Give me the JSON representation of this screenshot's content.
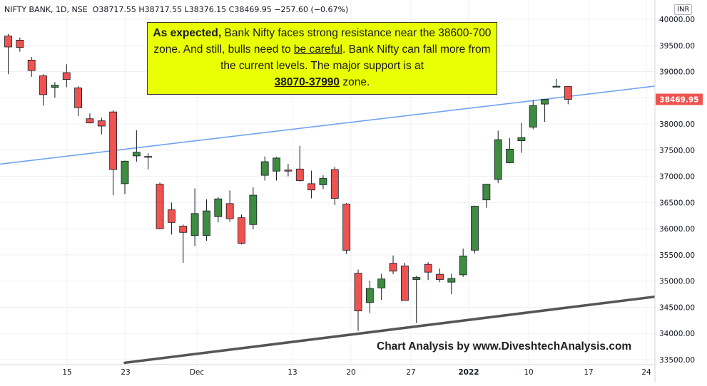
{
  "header": {
    "symbol": "NIFTY BANK, 1D, NSE",
    "ohlc_text": "O38717.55 H38717.55 L38376.15 C38469.95 −257.60 (−0.67%)"
  },
  "currency": "INR",
  "last_price_label": "38469.95",
  "annotation": {
    "p1_bold": "As expected,",
    "p1_rest": " Bank Nifty faces strong resistance near the 38600-700 zone. And still, bulls need to ",
    "p1_underlined": "be careful",
    "p1_tail": ". Bank Nifty can fall more from the current levels. The major support is at ",
    "p2_bold_underlined": "38070-37990",
    "p2_tail": " zone."
  },
  "credit": "Chart Analysis by www.DiveshtechAnalysis.com",
  "colors": {
    "up": "#3d8c40",
    "down": "#ef5350",
    "resistance_line": "#6fa3ef",
    "support_line": "#555555",
    "note_bg": "#e9ff03",
    "price_label_bg": "#ef5350"
  },
  "chart_data": {
    "type": "candlestick",
    "x_tick_labels": [
      "15",
      "23",
      "Dec",
      "13",
      "20",
      "27",
      "2022",
      "10",
      "17",
      "24"
    ],
    "y_tick_labels": [
      "33500.00",
      "34000.00",
      "34500.00",
      "35000.00",
      "35500.00",
      "36000.00",
      "36500.00",
      "37000.00",
      "37500.00",
      "38000.00",
      "38500.00",
      "39000.00",
      "39500.00",
      "40000.00"
    ],
    "ylim": [
      33450,
      40150
    ],
    "grid": true,
    "candles": [
      {
        "o": 39680,
        "h": 39720,
        "l": 38950,
        "c": 39470
      },
      {
        "o": 39600,
        "h": 39650,
        "l": 39380,
        "c": 39460
      },
      {
        "o": 39220,
        "h": 39280,
        "l": 38900,
        "c": 39020
      },
      {
        "o": 38920,
        "h": 38950,
        "l": 38350,
        "c": 38560
      },
      {
        "o": 38700,
        "h": 38800,
        "l": 38500,
        "c": 38740
      },
      {
        "o": 38980,
        "h": 39140,
        "l": 38700,
        "c": 38850
      },
      {
        "o": 38690,
        "h": 38720,
        "l": 38150,
        "c": 38310
      },
      {
        "o": 38100,
        "h": 38200,
        "l": 38010,
        "c": 38020
      },
      {
        "o": 38060,
        "h": 38120,
        "l": 37800,
        "c": 37960
      },
      {
        "o": 38230,
        "h": 38260,
        "l": 36640,
        "c": 37130
      },
      {
        "o": 36860,
        "h": 37300,
        "l": 36660,
        "c": 37290
      },
      {
        "o": 37390,
        "h": 37880,
        "l": 37280,
        "c": 37460
      },
      {
        "o": 37380,
        "h": 37440,
        "l": 37130,
        "c": 37370
      },
      {
        "o": 36850,
        "h": 36880,
        "l": 35990,
        "c": 36000
      },
      {
        "o": 36360,
        "h": 36500,
        "l": 35890,
        "c": 36120
      },
      {
        "o": 36050,
        "h": 36080,
        "l": 35350,
        "c": 35930
      },
      {
        "o": 35870,
        "h": 36770,
        "l": 35670,
        "c": 36290
      },
      {
        "o": 35870,
        "h": 36560,
        "l": 35770,
        "c": 36340
      },
      {
        "o": 36230,
        "h": 36600,
        "l": 36120,
        "c": 36570
      },
      {
        "o": 36480,
        "h": 36730,
        "l": 36130,
        "c": 36190
      },
      {
        "o": 36210,
        "h": 36270,
        "l": 35700,
        "c": 35720
      },
      {
        "o": 36080,
        "h": 36790,
        "l": 35990,
        "c": 36640
      },
      {
        "o": 37020,
        "h": 37380,
        "l": 36920,
        "c": 37280
      },
      {
        "o": 37100,
        "h": 37370,
        "l": 36920,
        "c": 37350
      },
      {
        "o": 37120,
        "h": 37240,
        "l": 37000,
        "c": 37100
      },
      {
        "o": 37140,
        "h": 37580,
        "l": 36900,
        "c": 36920
      },
      {
        "o": 36860,
        "h": 37110,
        "l": 36580,
        "c": 36740
      },
      {
        "o": 36840,
        "h": 37020,
        "l": 36760,
        "c": 36960
      },
      {
        "o": 37130,
        "h": 37180,
        "l": 36450,
        "c": 36580
      },
      {
        "o": 36470,
        "h": 36490,
        "l": 35520,
        "c": 35590
      },
      {
        "o": 35150,
        "h": 35220,
        "l": 34050,
        "c": 34430
      },
      {
        "o": 34590,
        "h": 35010,
        "l": 34390,
        "c": 34860
      },
      {
        "o": 34870,
        "h": 35140,
        "l": 34640,
        "c": 35040
      },
      {
        "o": 35340,
        "h": 35490,
        "l": 35130,
        "c": 35190
      },
      {
        "o": 35290,
        "h": 35350,
        "l": 34630,
        "c": 34630
      },
      {
        "o": 35030,
        "h": 35100,
        "l": 34200,
        "c": 35070
      },
      {
        "o": 35320,
        "h": 35360,
        "l": 35020,
        "c": 35170
      },
      {
        "o": 35130,
        "h": 35240,
        "l": 34980,
        "c": 35030
      },
      {
        "o": 34980,
        "h": 35140,
        "l": 34750,
        "c": 35050
      },
      {
        "o": 35120,
        "h": 35620,
        "l": 35080,
        "c": 35480
      },
      {
        "o": 35590,
        "h": 36440,
        "l": 35530,
        "c": 36430
      },
      {
        "o": 36550,
        "h": 36850,
        "l": 36400,
        "c": 36850
      },
      {
        "o": 36940,
        "h": 37870,
        "l": 36870,
        "c": 37700
      },
      {
        "o": 37260,
        "h": 37730,
        "l": 37250,
        "c": 37520
      },
      {
        "o": 37680,
        "h": 38020,
        "l": 37450,
        "c": 37740
      },
      {
        "o": 37940,
        "h": 38450,
        "l": 37900,
        "c": 38350
      },
      {
        "o": 38380,
        "h": 38430,
        "l": 38040,
        "c": 38470
      },
      {
        "o": 38720,
        "h": 38860,
        "l": 38710,
        "c": 38720
      },
      {
        "o": 38718,
        "h": 38718,
        "l": 38376,
        "c": 38470
      }
    ],
    "trendlines": [
      {
        "name": "",
        "from_candle_pos": -5.0,
        "from_value": 37120,
        "to_candle_pos": 64.0,
        "to_value": 38950
      },
      {
        "name": "",
        "from_candle_pos": 10.0,
        "from_value": 33440,
        "to_candle_pos": 64.0,
        "to_value": 34940
      }
    ]
  }
}
